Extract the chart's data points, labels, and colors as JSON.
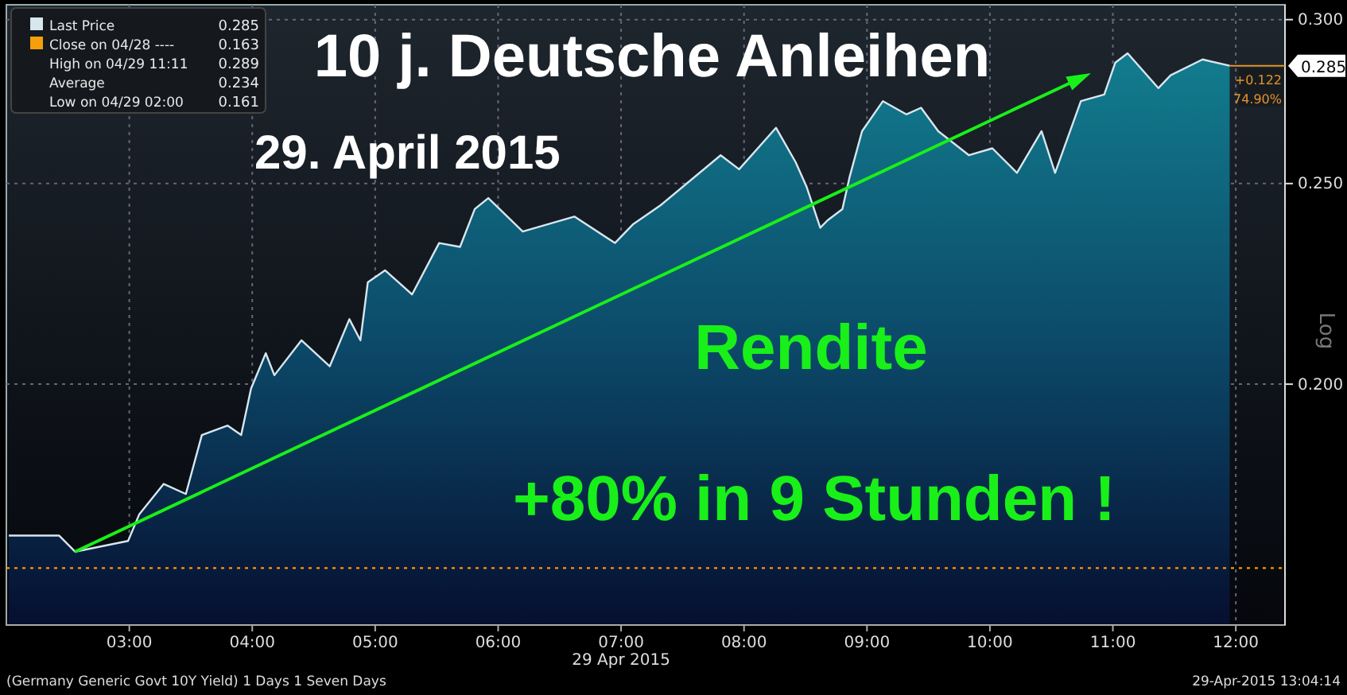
{
  "chart_data": {
    "type": "area",
    "title": "10 j. Deutsche Anleihen",
    "subtitle": "29. April 2015",
    "xlabel": "29 Apr 2015",
    "x": [
      2.02,
      2.43,
      2.56,
      2.99,
      3.08,
      3.28,
      3.46,
      3.59,
      3.8,
      3.91,
      3.99,
      4.11,
      4.18,
      4.4,
      4.63,
      4.79,
      4.88,
      4.94,
      5.08,
      5.3,
      5.52,
      5.69,
      5.81,
      5.92,
      6.2,
      6.62,
      6.95,
      7.1,
      7.32,
      7.81,
      7.96,
      8.26,
      8.42,
      8.51,
      8.62,
      8.68,
      8.8,
      8.86,
      8.96,
      9.13,
      9.32,
      9.44,
      9.58,
      9.83,
      10.02,
      10.22,
      10.42,
      10.53,
      10.74,
      10.93,
      11.02,
      11.12,
      11.37,
      11.47,
      11.73,
      11.95
    ],
    "series": [
      {
        "name": "Last Price",
        "color": "#d8e6ee",
        "values": [
          0.169,
          0.169,
          0.166,
          0.168,
          0.173,
          0.179,
          0.177,
          0.189,
          0.191,
          0.189,
          0.199,
          0.207,
          0.202,
          0.21,
          0.204,
          0.215,
          0.21,
          0.224,
          0.227,
          0.221,
          0.234,
          0.233,
          0.243,
          0.246,
          0.237,
          0.241,
          0.234,
          0.239,
          0.244,
          0.258,
          0.254,
          0.266,
          0.256,
          0.249,
          0.238,
          0.24,
          0.243,
          0.252,
          0.265,
          0.274,
          0.27,
          0.272,
          0.265,
          0.258,
          0.26,
          0.253,
          0.265,
          0.253,
          0.274,
          0.276,
          0.286,
          0.289,
          0.278,
          0.282,
          0.287,
          0.285
        ]
      }
    ],
    "log": "y",
    "xlim": [
      2.0,
      12.4
    ],
    "ylim": [
      0.153,
      0.305
    ],
    "xticks": [
      {
        "value": 3,
        "label": "03:00"
      },
      {
        "value": 4,
        "label": "04:00"
      },
      {
        "value": 5,
        "label": "05:00"
      },
      {
        "value": 6,
        "label": "06:00"
      },
      {
        "value": 7,
        "label": "07:00"
      },
      {
        "value": 8,
        "label": "08:00"
      },
      {
        "value": 9,
        "label": "09:00"
      },
      {
        "value": 10,
        "label": "10:00"
      },
      {
        "value": 11,
        "label": "11:00"
      },
      {
        "value": 12,
        "label": "12:00"
      }
    ],
    "yticks": [
      {
        "value": 0.2,
        "label": "0.200"
      },
      {
        "value": 0.25,
        "label": "0.250"
      },
      {
        "value": 0.3,
        "label": "0.300"
      }
    ],
    "grid": true,
    "legend": "top left",
    "ref_lines": [
      {
        "axis": "y",
        "value": 0.163,
        "color": "#ff9900",
        "line_style": "dotted"
      }
    ],
    "annotations": [
      "0.285",
      "Close on 04/28 ----",
      "0.163",
      "High on 04/29 11:11",
      "0.289",
      "Average",
      "0.234",
      "Low on 04/29 02:00",
      "0.161",
      "Rendite",
      "+80% in 9 Stunden !",
      "+0.122",
      "74.90%",
      "Log",
      "(Germany Generic Govt 10Y Yield) 1 Days 1 Seven Days",
      "29-Apr-2015 13:04:14",
      "0.285"
    ]
  }
}
